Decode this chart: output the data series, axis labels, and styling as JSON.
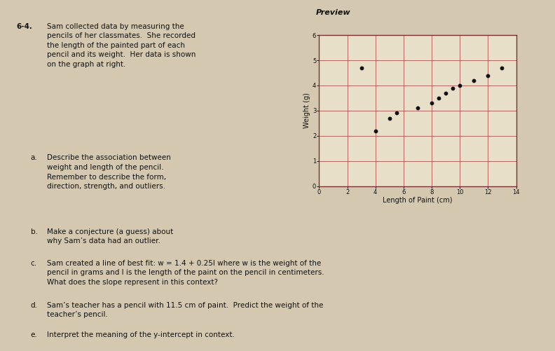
{
  "scatter_x": [
    3,
    4,
    5,
    5.5,
    7,
    8,
    8.5,
    9,
    9.5,
    10,
    11,
    12,
    13
  ],
  "scatter_y": [
    4.7,
    2.2,
    2.7,
    2.9,
    3.1,
    3.3,
    3.5,
    3.7,
    3.9,
    4.0,
    4.2,
    4.4,
    4.7
  ],
  "xlabel": "Length of Paint (cm)",
  "ylabel": "Weight (g)",
  "xlim": [
    0,
    14
  ],
  "ylim": [
    0,
    6
  ],
  "xticks": [
    0,
    2,
    4,
    6,
    8,
    10,
    12,
    14
  ],
  "yticks": [
    0,
    1,
    2,
    3,
    4,
    5,
    6
  ],
  "dot_color": "#111111",
  "dot_size": 10,
  "grid_color": "#b05050",
  "bg_color": "#d4c9b0",
  "plot_bg_color": "#e8dfc8",
  "axis_color": "#7a3030",
  "text_color": "#111111",
  "font_size_label": 7,
  "font_size_tick": 6,
  "problem_num": "6-4.",
  "problem_text": "Sam collected data by measuring the\npencils of her classmates.  She recorded\nthe length of the painted part of each\npencil and its weight.  Her data is shown\non the graph at right.",
  "part_a_label": "a.",
  "part_a_text": "Describe the association between\nweight and length of the pencil.\nRemember to describe the form,\ndirection, strength, and outliers.",
  "part_b_label": "b.",
  "part_b_text": "Make a conjecture (a guess) about\nwhy Sam’s data had an outlier.",
  "part_c_label": "c.",
  "part_c_text": "Sam created a line of best fit: w = 1.4 + 0.25l where w is the weight of the\npencil in grams and l is the length of the paint on the pencil in centimeters.\nWhat does the slope represent in this context?",
  "part_d_label": "d.",
  "part_d_text": "Sam’s teacher has a pencil with 11.5 cm of paint.  Predict the weight of the\nteacher’s pencil.",
  "part_e_label": "e.",
  "part_e_text": "Interpret the meaning of the y-intercept in context.",
  "preview_text": "Preview"
}
